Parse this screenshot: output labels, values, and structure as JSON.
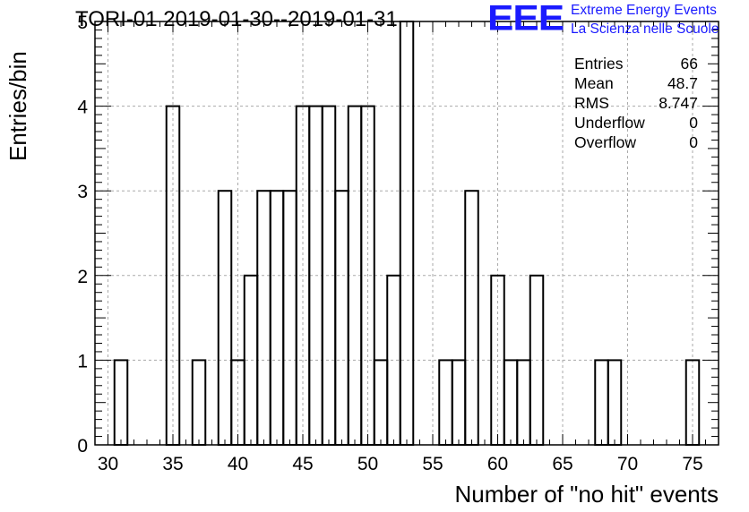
{
  "chart_data": {
    "type": "bar",
    "title": "TORI-01 2019-01-30--2019-01-31",
    "xlabel": "Number of \"no hit\" events",
    "ylabel": "Entries/bin",
    "xlim": [
      29,
      77
    ],
    "ylim": [
      0,
      5
    ],
    "bin_width": 1,
    "grid": true,
    "x_ticks": [
      30,
      35,
      40,
      45,
      50,
      55,
      60,
      65,
      70,
      75
    ],
    "y_ticks": [
      0,
      1,
      2,
      3,
      4,
      5
    ],
    "bins": [
      {
        "x": 31,
        "count": 1
      },
      {
        "x": 35,
        "count": 4
      },
      {
        "x": 37,
        "count": 1
      },
      {
        "x": 39,
        "count": 3
      },
      {
        "x": 40,
        "count": 1
      },
      {
        "x": 41,
        "count": 2
      },
      {
        "x": 42,
        "count": 3
      },
      {
        "x": 43,
        "count": 3
      },
      {
        "x": 44,
        "count": 3
      },
      {
        "x": 45,
        "count": 4
      },
      {
        "x": 46,
        "count": 4
      },
      {
        "x": 47,
        "count": 4
      },
      {
        "x": 48,
        "count": 3
      },
      {
        "x": 49,
        "count": 4
      },
      {
        "x": 50,
        "count": 4
      },
      {
        "x": 51,
        "count": 1
      },
      {
        "x": 52,
        "count": 2
      },
      {
        "x": 53,
        "count": 5
      },
      {
        "x": 56,
        "count": 1
      },
      {
        "x": 57,
        "count": 1
      },
      {
        "x": 58,
        "count": 3
      },
      {
        "x": 60,
        "count": 2
      },
      {
        "x": 61,
        "count": 1
      },
      {
        "x": 62,
        "count": 1
      },
      {
        "x": 63,
        "count": 2
      },
      {
        "x": 68,
        "count": 1
      },
      {
        "x": 69,
        "count": 1
      },
      {
        "x": 75,
        "count": 1
      }
    ],
    "stats": {
      "entries_label": "Entries",
      "entries": "66",
      "mean_label": "Mean",
      "mean": "48.7",
      "rms_label": "RMS",
      "rms": "8.747",
      "underflow_label": "Underflow",
      "underflow": "0",
      "overflow_label": "Overflow",
      "overflow": "0"
    }
  },
  "logo": {
    "mark": "EEE",
    "line1": "Extreme Energy Events",
    "line2": "La Scienza nelle Scuole",
    "color": "#1a1aff"
  }
}
